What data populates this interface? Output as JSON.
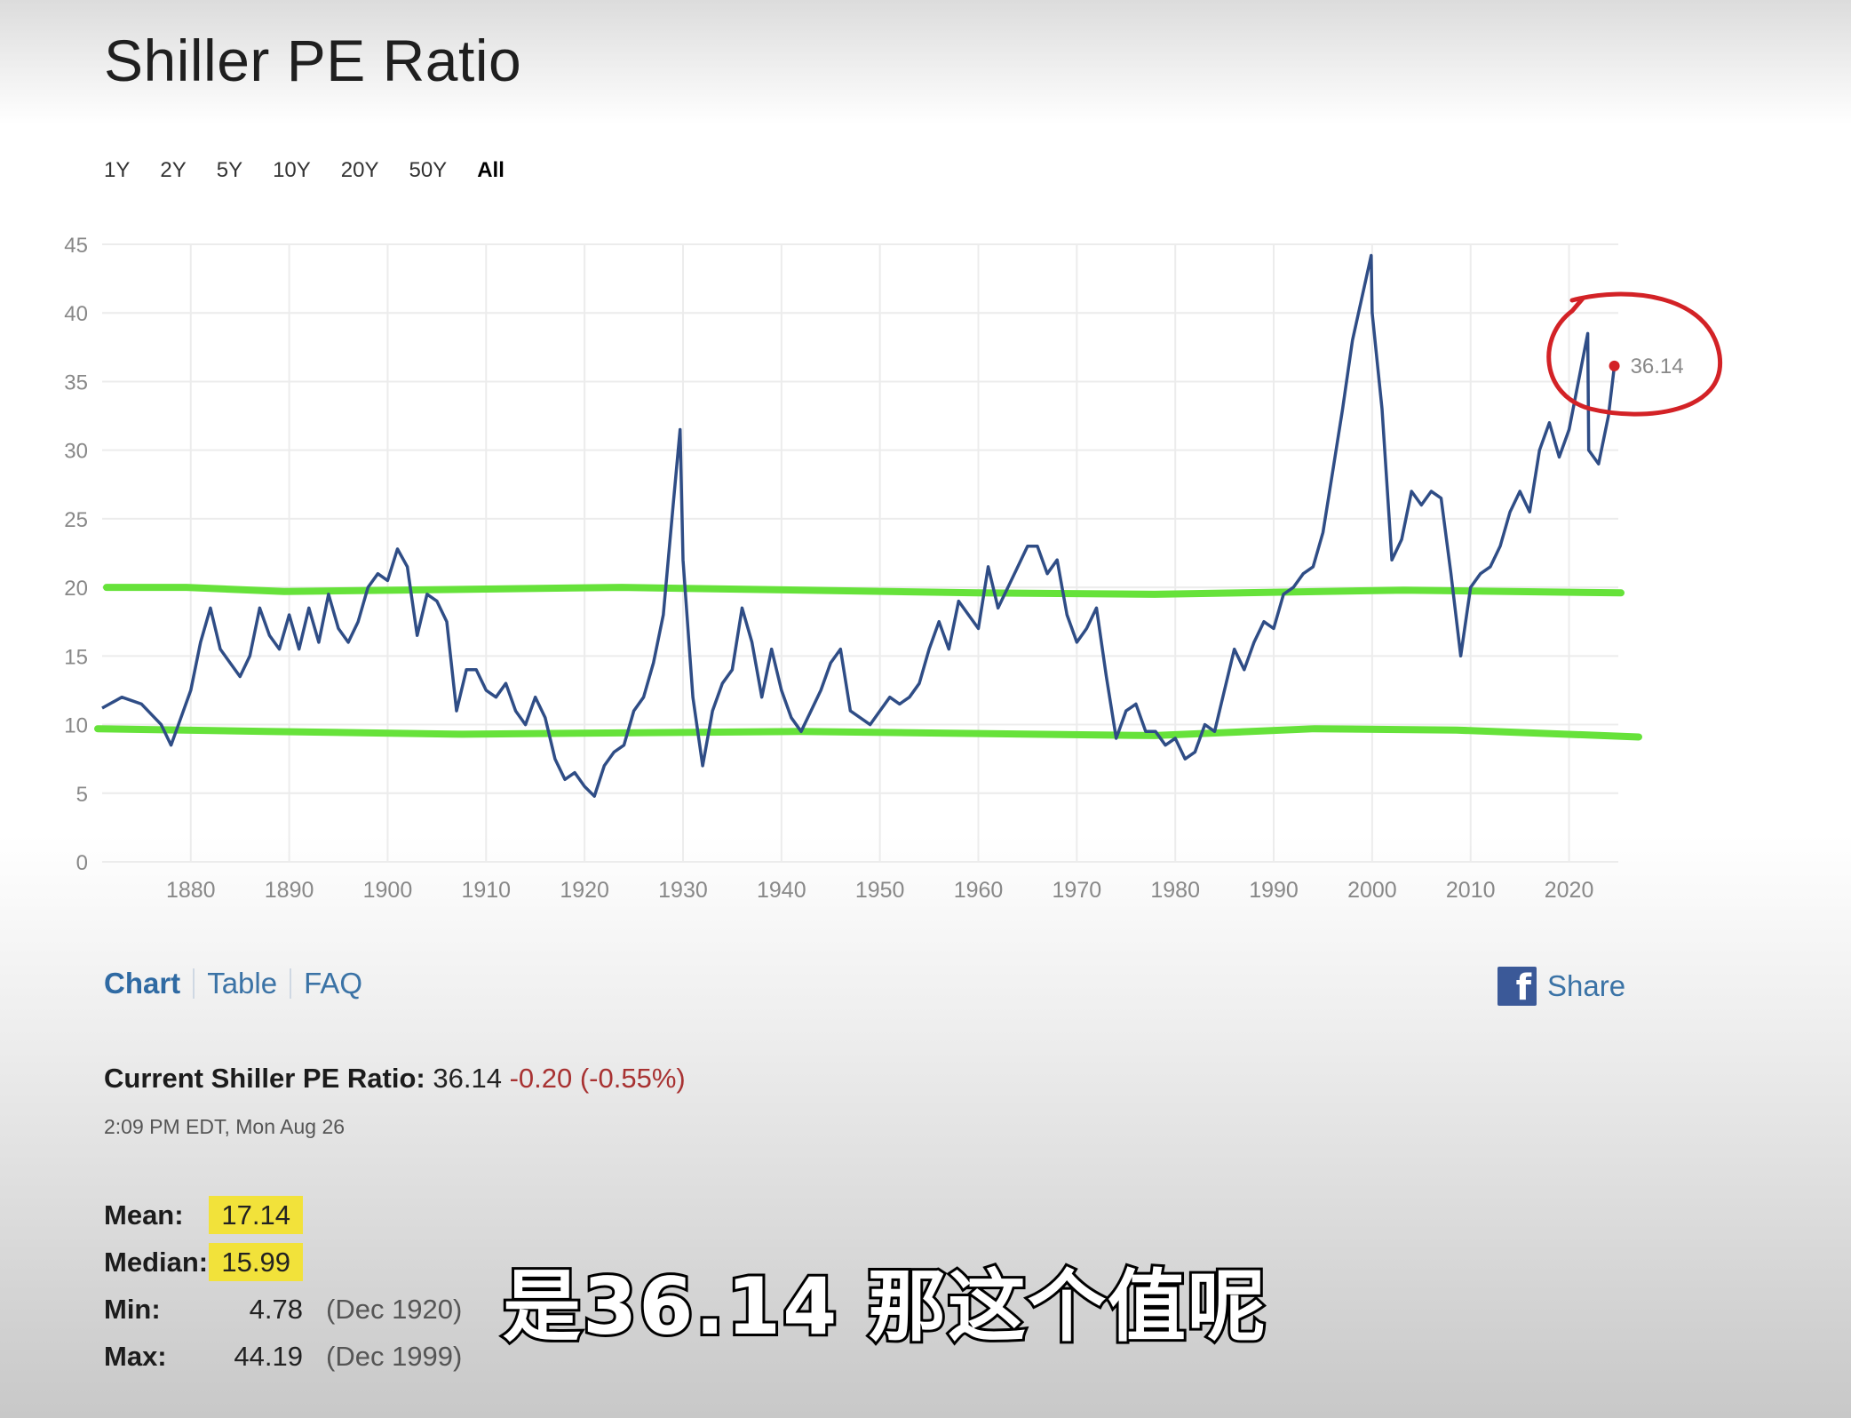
{
  "title": "Shiller PE Ratio",
  "ranges": [
    "1Y",
    "2Y",
    "5Y",
    "10Y",
    "20Y",
    "50Y",
    "All"
  ],
  "active_range": "All",
  "nav": {
    "chart": "Chart",
    "table": "Table",
    "faq": "FAQ"
  },
  "share_label": "Share",
  "current": {
    "label": "Current Shiller PE Ratio:",
    "value": "36.14",
    "change": "-0.20 (-0.55%)",
    "timestamp": "2:09 PM EDT, Mon Aug 26"
  },
  "stats": {
    "mean": {
      "label": "Mean:",
      "value": "17.14"
    },
    "median": {
      "label": "Median:",
      "value": "15.99"
    },
    "min": {
      "label": "Min:",
      "value": "4.78",
      "date": "(Dec 1920)"
    },
    "max": {
      "label": "Max:",
      "value": "44.19",
      "date": "(Dec 1999)"
    }
  },
  "subtitle": "是36.14 那这个值呢",
  "colors": {
    "line": "#2f4d86",
    "grid": "#ececec",
    "annotation": "#d32226",
    "guide": "#66e23a",
    "highlight": "#f2e23a"
  },
  "chart_data": {
    "type": "line",
    "title": "Shiller PE Ratio",
    "xlabel": "",
    "ylabel": "",
    "xlim": [
      1871,
      2025
    ],
    "ylim": [
      0,
      45
    ],
    "yticks": [
      0,
      5,
      10,
      15,
      20,
      25,
      30,
      35,
      40,
      45
    ],
    "xticks": [
      1880,
      1890,
      1900,
      1910,
      1920,
      1930,
      1940,
      1950,
      1960,
      1970,
      1980,
      1990,
      2000,
      2010,
      2020
    ],
    "grid": true,
    "last_label": "36.14",
    "series": [
      {
        "x": [
          1871,
          1873,
          1875,
          1877,
          1878,
          1879,
          1880,
          1881,
          1882,
          1883,
          1884,
          1885,
          1886,
          1887,
          1888,
          1889,
          1890,
          1891,
          1892,
          1893,
          1894,
          1895,
          1896,
          1897,
          1898,
          1899,
          1900,
          1901,
          1902,
          1903,
          1904,
          1905,
          1906,
          1907,
          1908,
          1909,
          1910,
          1911,
          1912,
          1913,
          1914,
          1915,
          1916,
          1917,
          1918,
          1919,
          1920,
          1921,
          1922,
          1923,
          1924,
          1925,
          1926,
          1927,
          1928,
          1929,
          1929.7,
          1930,
          1931,
          1932,
          1933,
          1934,
          1935,
          1936,
          1937,
          1938,
          1939,
          1940,
          1941,
          1942,
          1943,
          1944,
          1945,
          1946,
          1947,
          1948,
          1949,
          1950,
          1951,
          1952,
          1953,
          1954,
          1955,
          1956,
          1957,
          1958,
          1959,
          1960,
          1961,
          1962,
          1963,
          1964,
          1965,
          1966,
          1967,
          1968,
          1969,
          1970,
          1971,
          1972,
          1973,
          1974,
          1975,
          1976,
          1977,
          1978,
          1979,
          1980,
          1981,
          1982,
          1983,
          1984,
          1985,
          1986,
          1987,
          1988,
          1989,
          1990,
          1991,
          1992,
          1993,
          1994,
          1995,
          1996,
          1997,
          1998,
          1999.9,
          2000,
          2001,
          2002,
          2003,
          2004,
          2005,
          2006,
          2007,
          2008,
          2009,
          2010,
          2011,
          2012,
          2013,
          2014,
          2015,
          2016,
          2017,
          2018,
          2019,
          2020,
          2021.9,
          2022,
          2023,
          2024,
          2024.6
        ],
        "y": [
          11.2,
          12.0,
          11.5,
          10.0,
          8.5,
          10.5,
          12.5,
          16.0,
          18.5,
          15.5,
          14.5,
          13.5,
          15.0,
          18.5,
          16.5,
          15.5,
          18.0,
          15.5,
          18.5,
          16.0,
          19.5,
          17.0,
          16.0,
          17.5,
          20.0,
          21.0,
          20.5,
          22.8,
          21.5,
          16.5,
          19.5,
          19.0,
          17.5,
          11.0,
          14.0,
          14.0,
          12.5,
          12.0,
          13.0,
          11.0,
          10.0,
          12.0,
          10.5,
          7.5,
          6.0,
          6.5,
          5.5,
          4.78,
          7.0,
          8.0,
          8.5,
          11.0,
          12.0,
          14.5,
          18.0,
          26.0,
          31.5,
          22.0,
          12.0,
          7.0,
          11.0,
          13.0,
          14.0,
          18.5,
          16.0,
          12.0,
          15.5,
          12.5,
          10.5,
          9.5,
          11.0,
          12.5,
          14.5,
          15.5,
          11.0,
          10.5,
          10.0,
          11.0,
          12.0,
          11.5,
          12.0,
          13.0,
          15.5,
          17.5,
          15.5,
          19.0,
          18.0,
          17.0,
          21.5,
          18.5,
          20.0,
          21.5,
          23.0,
          23.0,
          21.0,
          22.0,
          18.0,
          16.0,
          17.0,
          18.5,
          13.5,
          9.0,
          11.0,
          11.5,
          9.5,
          9.5,
          8.5,
          9.0,
          7.5,
          8.0,
          10.0,
          9.5,
          12.5,
          15.5,
          14.0,
          16.0,
          17.5,
          17.0,
          19.5,
          20.0,
          21.0,
          21.5,
          24.0,
          28.5,
          33.0,
          38.0,
          44.19,
          40.0,
          33.0,
          22.0,
          23.5,
          27.0,
          26.0,
          27.0,
          26.5,
          21.0,
          15.0,
          20.0,
          21.0,
          21.5,
          23.0,
          25.5,
          27.0,
          25.5,
          30.0,
          32.0,
          29.5,
          31.5,
          38.5,
          30.0,
          29.0,
          32.5,
          36.14
        ]
      }
    ]
  }
}
